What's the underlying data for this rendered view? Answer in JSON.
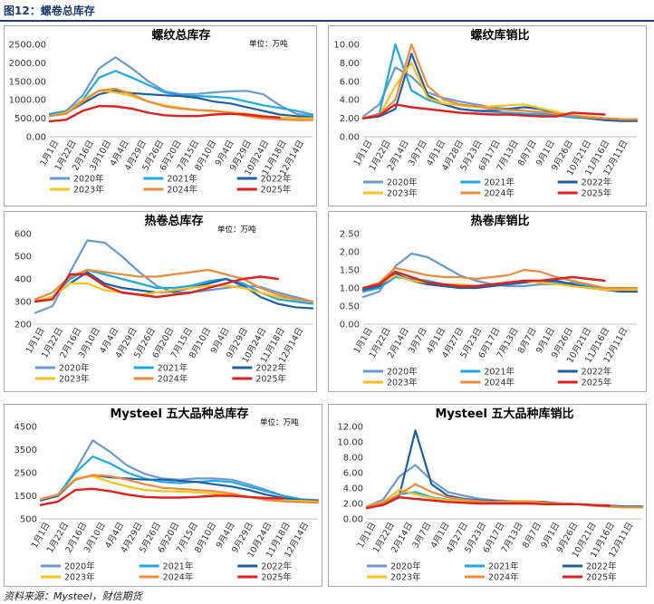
{
  "figure": {
    "title": "图12：螺卷总库存",
    "source": "资料来源：Mysteel，财信期货"
  },
  "colors": {
    "2020年": "#6a9ad2",
    "2021年": "#1fa8e6",
    "2022年": "#1f5fa3",
    "2023年": "#f7c21a",
    "2024年": "#ee8b3a",
    "2025年": "#e01f1f"
  },
  "chart_data": [
    {
      "type": "line",
      "title": "螺纹总库存",
      "unit": "单位：万吨",
      "ylim": [
        0,
        2500
      ],
      "yticks": [
        "0.00",
        "500.00",
        "1000.00",
        "1500.00",
        "2000.00",
        "2500.00"
      ],
      "x_ticks": [
        "1月1日",
        "1月22日",
        "2月16日",
        "3月10日",
        "4月4日",
        "4月29日",
        "5月26日",
        "6月20日",
        "7月15日",
        "8月10日",
        "9月4日",
        "9月29日",
        "10月24日",
        "11月18日",
        "12月14日"
      ],
      "legend_order": [
        "2020年",
        "2021年",
        "2022年",
        "2023年",
        "2024年",
        "2025年"
      ],
      "series": [
        {
          "name": "2020年",
          "values": [
            620,
            700,
            1120,
            1850,
            2150,
            1850,
            1500,
            1230,
            1150,
            1160,
            1200,
            1230,
            1240,
            1150,
            850,
            620,
            560
          ]
        },
        {
          "name": "2021年",
          "values": [
            600,
            680,
            1000,
            1600,
            1780,
            1600,
            1400,
            1200,
            1120,
            1100,
            1080,
            1050,
            950,
            850,
            780,
            700,
            600
          ]
        },
        {
          "name": "2022年",
          "values": [
            560,
            640,
            900,
            1150,
            1250,
            1180,
            1150,
            1120,
            1100,
            1050,
            950,
            900,
            800,
            700,
            600,
            560,
            520
          ]
        },
        {
          "name": "2023年",
          "values": [
            560,
            650,
            1000,
            1250,
            1200,
            1100,
            950,
            850,
            780,
            720,
            690,
            660,
            620,
            560,
            520,
            500,
            500
          ]
        },
        {
          "name": "2024年",
          "values": [
            560,
            620,
            950,
            1250,
            1300,
            1150,
            950,
            820,
            760,
            720,
            700,
            650,
            560,
            500,
            470,
            450,
            450
          ]
        },
        {
          "name": "2025年",
          "values": [
            420,
            460,
            700,
            830,
            820,
            760,
            650,
            580,
            560,
            560,
            600,
            620,
            600,
            550,
            520,
            null,
            null
          ]
        }
      ]
    },
    {
      "type": "line",
      "title": "螺纹库销比",
      "ylim": [
        0,
        10
      ],
      "yticks": [
        "0.00",
        "2.00",
        "4.00",
        "6.00",
        "8.00",
        "10.00"
      ],
      "x_ticks": [
        "1月1日",
        "1月22日",
        "2月14日",
        "3月7日",
        "4月1日",
        "4月28日",
        "5月23日",
        "6月17日",
        "7月13日",
        "8月7日",
        "9月1日",
        "9月26日",
        "10月21日",
        "11月16日",
        "12月11日"
      ],
      "legend_order": [
        "2020年",
        "2021年",
        "2022年",
        "2023年",
        "2024年",
        "2025年"
      ],
      "series": [
        {
          "name": "2020年",
          "values": [
            2.2,
            3.5,
            7.5,
            6.5,
            4.8,
            4.2,
            3.8,
            3.5,
            3.2,
            3.0,
            2.8,
            2.6,
            2.5,
            2.2,
            2.0,
            2.0,
            1.9,
            1.9
          ]
        },
        {
          "name": "2021年",
          "values": [
            2.0,
            2.5,
            10.0,
            5.0,
            4.0,
            3.5,
            3.0,
            2.8,
            2.7,
            2.6,
            2.5,
            2.4,
            2.3,
            2.1,
            2.0,
            1.9,
            1.8,
            1.8
          ]
        },
        {
          "name": "2022年",
          "values": [
            2.0,
            2.2,
            3.0,
            9.0,
            4.5,
            3.5,
            3.0,
            2.8,
            2.8,
            3.0,
            3.2,
            3.0,
            2.6,
            2.3,
            2.0,
            1.8,
            1.7,
            1.7
          ]
        },
        {
          "name": "2023年",
          "values": [
            2.1,
            2.3,
            5.5,
            8.0,
            4.2,
            3.6,
            3.4,
            3.2,
            3.3,
            3.4,
            3.5,
            3.1,
            2.7,
            2.3,
            2.2,
            2.0,
            1.9,
            1.9
          ]
        },
        {
          "name": "2024年",
          "values": [
            2.0,
            2.4,
            4.0,
            10.0,
            5.5,
            4.0,
            3.5,
            3.3,
            3.0,
            2.9,
            2.8,
            2.7,
            2.5,
            2.3,
            2.1,
            2.0,
            1.9,
            1.9
          ]
        },
        {
          "name": "2025年",
          "values": [
            2.0,
            2.3,
            3.5,
            3.2,
            3.0,
            2.8,
            2.6,
            2.5,
            2.4,
            2.4,
            2.3,
            2.2,
            2.2,
            2.6,
            2.5,
            2.4,
            null,
            null
          ]
        }
      ]
    },
    {
      "type": "line",
      "title": "热卷总库存",
      "unit": "单位：万吨",
      "ylim": [
        200,
        600
      ],
      "yticks": [
        "200",
        "300",
        "400",
        "500",
        "600"
      ],
      "x_ticks": [
        "1月1日",
        "1月22日",
        "2月16日",
        "3月10日",
        "4月4日",
        "4月29日",
        "5月26日",
        "6月20日",
        "7月15日",
        "8月10日",
        "9月4日",
        "9月29日",
        "10月24日",
        "11月18日",
        "12月14日"
      ],
      "legend_order": [
        "2020年",
        "2021年",
        "2022年",
        "2023年",
        "2024年",
        "2025年"
      ],
      "series": [
        {
          "name": "2020年",
          "values": [
            250,
            280,
            430,
            570,
            560,
            500,
            430,
            370,
            340,
            340,
            350,
            360,
            370,
            365,
            340,
            320,
            300
          ]
        },
        {
          "name": "2021年",
          "values": [
            300,
            320,
            400,
            440,
            420,
            400,
            380,
            360,
            360,
            370,
            390,
            400,
            380,
            340,
            310,
            300,
            290
          ]
        },
        {
          "name": "2022年",
          "values": [
            300,
            320,
            380,
            430,
            380,
            360,
            350,
            340,
            345,
            360,
            380,
            400,
            370,
            320,
            290,
            275,
            270
          ]
        },
        {
          "name": "2023年",
          "values": [
            300,
            320,
            380,
            380,
            350,
            340,
            330,
            340,
            350,
            360,
            370,
            370,
            360,
            340,
            320,
            310,
            300
          ]
        },
        {
          "name": "2024年",
          "values": [
            310,
            340,
            410,
            440,
            430,
            420,
            410,
            410,
            420,
            430,
            440,
            420,
            400,
            360,
            330,
            310,
            300
          ]
        },
        {
          "name": "2025年",
          "values": [
            300,
            310,
            420,
            420,
            370,
            340,
            330,
            320,
            330,
            340,
            360,
            380,
            400,
            410,
            400,
            null,
            null
          ]
        }
      ]
    },
    {
      "type": "line",
      "title": "热卷库销比",
      "ylim": [
        0,
        2.5
      ],
      "yticks": [
        "0.00",
        "0.50",
        "1.00",
        "1.50",
        "2.00",
        "2.50"
      ],
      "x_ticks": [
        "1月1日",
        "1月22日",
        "2月14日",
        "3月7日",
        "4月1日",
        "4月27日",
        "5月23日",
        "6月17日",
        "7月13日",
        "8月7日",
        "9月1日",
        "9月26日",
        "10月21日",
        "11月16日",
        "12月11日"
      ],
      "legend_order": [
        "2020年",
        "2021年",
        "2022年",
        "2023年",
        "2024年",
        "2025年"
      ],
      "series": [
        {
          "name": "2020年",
          "values": [
            0.75,
            0.9,
            1.6,
            1.95,
            1.85,
            1.6,
            1.35,
            1.2,
            1.1,
            1.05,
            1.05,
            1.1,
            1.1,
            1.15,
            1.05,
            1.0,
            0.9,
            0.9
          ]
        },
        {
          "name": "2021年",
          "values": [
            0.9,
            1.0,
            1.3,
            1.25,
            1.2,
            1.1,
            1.05,
            1.05,
            1.1,
            1.1,
            1.15,
            1.2,
            1.15,
            1.1,
            1.05,
            1.0,
            0.95,
            1.0
          ]
        },
        {
          "name": "2022年",
          "values": [
            0.95,
            1.05,
            1.4,
            1.2,
            1.1,
            1.05,
            1.0,
            1.0,
            1.05,
            1.1,
            1.15,
            1.2,
            1.2,
            1.1,
            1.0,
            0.95,
            0.9,
            0.9
          ]
        },
        {
          "name": "2023年",
          "values": [
            1.0,
            1.1,
            1.35,
            1.2,
            1.15,
            1.1,
            1.1,
            1.05,
            1.1,
            1.15,
            1.2,
            1.15,
            1.1,
            1.05,
            1.0,
            0.95,
            0.95,
            0.95
          ]
        },
        {
          "name": "2024年",
          "values": [
            1.0,
            1.15,
            1.55,
            1.45,
            1.35,
            1.3,
            1.3,
            1.25,
            1.3,
            1.35,
            1.5,
            1.45,
            1.3,
            1.2,
            1.1,
            1.0,
            1.0,
            1.0
          ]
        },
        {
          "name": "2025年",
          "values": [
            1.0,
            1.1,
            1.45,
            1.3,
            1.15,
            1.1,
            1.05,
            1.05,
            1.1,
            1.15,
            1.2,
            1.2,
            1.25,
            1.3,
            1.25,
            1.2,
            null,
            null
          ]
        }
      ]
    },
    {
      "type": "line",
      "title": "Mysteel 五大品种总库存",
      "unit": "单位：万吨",
      "ylim": [
        500,
        4500
      ],
      "yticks": [
        "500",
        "1500",
        "2500",
        "3500",
        "4500"
      ],
      "x_ticks": [
        "1月1日",
        "1月22日",
        "2月16日",
        "3月10日",
        "4月4日",
        "4月29日",
        "5月26日",
        "6月20日",
        "7月15日",
        "8月10日",
        "9月4日",
        "9月29日",
        "10月24日",
        "11月18日",
        "12月14日"
      ],
      "legend_order": [
        "2020年",
        "2021年",
        "2022年",
        "2023年",
        "2024年",
        "2025年"
      ],
      "series": [
        {
          "name": "2020年",
          "values": [
            1300,
            1500,
            2600,
            3900,
            3400,
            2800,
            2450,
            2250,
            2200,
            2250,
            2250,
            2200,
            2000,
            1750,
            1500,
            1350,
            1300
          ]
        },
        {
          "name": "2021年",
          "values": [
            1350,
            1550,
            2500,
            3200,
            2900,
            2500,
            2250,
            2100,
            2050,
            2100,
            2150,
            2100,
            1900,
            1700,
            1500,
            1350,
            1300
          ]
        },
        {
          "name": "2022年",
          "values": [
            1300,
            1500,
            2200,
            2400,
            2300,
            2250,
            2200,
            2200,
            2150,
            2100,
            2000,
            1900,
            1750,
            1550,
            1400,
            1300,
            1300
          ]
        },
        {
          "name": "2023年",
          "values": [
            1350,
            1550,
            2250,
            2350,
            2100,
            1900,
            1750,
            1700,
            1680,
            1650,
            1600,
            1550,
            1450,
            1350,
            1300,
            1280,
            1250
          ]
        },
        {
          "name": "2024年",
          "values": [
            1350,
            1550,
            2200,
            2400,
            2350,
            2200,
            2000,
            1850,
            1800,
            1750,
            1700,
            1600,
            1450,
            1320,
            1260,
            1230,
            1200
          ]
        },
        {
          "name": "2025年",
          "values": [
            1100,
            1250,
            1750,
            1800,
            1700,
            1550,
            1450,
            1420,
            1420,
            1450,
            1500,
            1500,
            1450,
            1400,
            1380,
            null,
            null
          ]
        }
      ]
    },
    {
      "type": "line",
      "title": "Mysteel 五大品种库销比",
      "ylim": [
        0,
        12
      ],
      "yticks": [
        "0.00",
        "2.00",
        "4.00",
        "6.00",
        "8.00",
        "10.00",
        "12.00"
      ],
      "x_ticks": [
        "1月1日",
        "1月22日",
        "2月14日",
        "3月7日",
        "4月1日",
        "4月27日",
        "5月23日",
        "6月17日",
        "7月13日",
        "8月7日",
        "9月1日",
        "9月26日",
        "10月21日",
        "11月16日",
        "12月11日"
      ],
      "legend_order": [
        "2020年",
        "2021年",
        "2022年",
        "2023年",
        "2024年",
        "2025年"
      ],
      "series": [
        {
          "name": "2020年",
          "values": [
            1.6,
            2.5,
            5.5,
            7.0,
            5.0,
            3.5,
            3.0,
            2.6,
            2.4,
            2.3,
            2.2,
            2.1,
            2.0,
            1.9,
            1.8,
            1.7,
            1.6,
            1.6
          ]
        },
        {
          "name": "2021年",
          "values": [
            1.6,
            2.0,
            3.2,
            3.5,
            2.8,
            2.5,
            2.3,
            2.2,
            2.2,
            2.2,
            2.2,
            2.1,
            2.0,
            1.9,
            1.7,
            1.6,
            1.5,
            1.5
          ]
        },
        {
          "name": "2022年",
          "values": [
            1.5,
            2.0,
            3.0,
            11.5,
            4.5,
            3.0,
            2.6,
            2.4,
            2.3,
            2.3,
            2.3,
            2.2,
            2.0,
            1.9,
            1.8,
            1.7,
            1.6,
            1.6
          ]
        },
        {
          "name": "2023年",
          "values": [
            1.6,
            2.2,
            3.8,
            3.2,
            2.7,
            2.4,
            2.3,
            2.2,
            2.2,
            2.3,
            2.3,
            2.1,
            2.0,
            1.9,
            1.8,
            1.6,
            1.5,
            1.5
          ]
        },
        {
          "name": "2024年",
          "values": [
            1.6,
            2.1,
            3.2,
            4.5,
            3.5,
            2.8,
            2.5,
            2.3,
            2.2,
            2.2,
            2.2,
            2.1,
            2.0,
            1.9,
            1.7,
            1.6,
            1.5,
            1.5
          ]
        },
        {
          "name": "2025年",
          "values": [
            1.4,
            1.8,
            2.8,
            2.6,
            2.4,
            2.2,
            2.1,
            2.0,
            2.0,
            2.0,
            2.0,
            1.9,
            1.9,
            1.9,
            1.8,
            1.7,
            null,
            null
          ]
        }
      ]
    }
  ]
}
